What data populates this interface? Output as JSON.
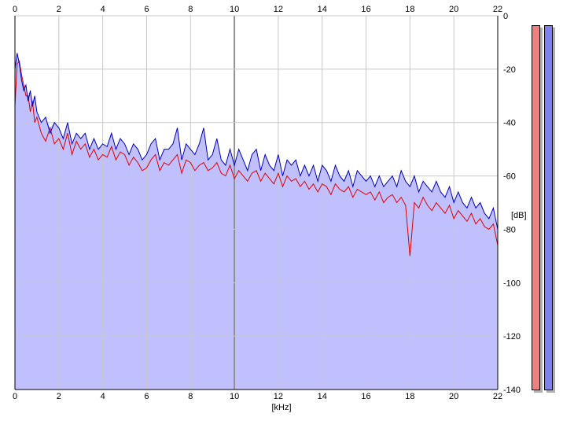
{
  "chart_data": {
    "type": "area",
    "title": "",
    "xlabel": "[kHz]",
    "ylabel": "[dB]",
    "xlim": [
      0,
      22
    ],
    "ylim": [
      -140,
      0
    ],
    "x_ticks": [
      "0",
      "2",
      "4",
      "6",
      "8",
      "10",
      "12",
      "14",
      "16",
      "18",
      "20",
      "22"
    ],
    "y_ticks": [
      "0",
      "-20",
      "-40",
      "-60",
      "-80",
      "-100",
      "-120",
      "-140"
    ],
    "grid": true,
    "colors": {
      "left": "#e00000",
      "right": "#0000c0",
      "fill": "#c0c0ff",
      "grid": "#c8c8c8"
    },
    "series": [
      {
        "channel": "left",
        "x": [
          0,
          0.1,
          0.2,
          0.3,
          0.4,
          0.5,
          0.6,
          0.7,
          0.8,
          0.9,
          1,
          1.2,
          1.4,
          1.6,
          1.8,
          2,
          2.2,
          2.4,
          2.6,
          2.8,
          3,
          3.2,
          3.4,
          3.6,
          3.8,
          4,
          4.2,
          4.4,
          4.6,
          4.8,
          5,
          5.2,
          5.4,
          5.6,
          5.8,
          6,
          6.2,
          6.4,
          6.6,
          6.8,
          7,
          7.2,
          7.4,
          7.6,
          7.8,
          8,
          8.2,
          8.4,
          8.6,
          8.8,
          9,
          9.2,
          9.4,
          9.6,
          9.8,
          10,
          10.2,
          10.4,
          10.6,
          10.8,
          11,
          11.2,
          11.4,
          11.6,
          11.8,
          12,
          12.2,
          12.4,
          12.6,
          12.8,
          13,
          13.2,
          13.4,
          13.6,
          13.8,
          14,
          14.2,
          14.4,
          14.6,
          14.8,
          15,
          15.2,
          15.4,
          15.6,
          15.8,
          16,
          16.2,
          16.4,
          16.6,
          16.8,
          17,
          17.2,
          17.4,
          17.6,
          17.8,
          18,
          18.2,
          18.4,
          18.6,
          18.8,
          19,
          19.2,
          19.4,
          19.6,
          19.8,
          20,
          20.2,
          20.4,
          20.6,
          20.8,
          21,
          21.2,
          21.4,
          21.6,
          21.8,
          22
        ],
        "y": [
          -34,
          -18,
          -17,
          -22,
          -26,
          -30,
          -30,
          -36,
          -32,
          -40,
          -38,
          -44,
          -47,
          -42,
          -48,
          -46,
          -50,
          -44,
          -52,
          -47,
          -50,
          -48,
          -53,
          -50,
          -54,
          -52,
          -53,
          -49,
          -54,
          -51,
          -52,
          -56,
          -53,
          -55,
          -58,
          -57,
          -54,
          -52,
          -58,
          -55,
          -56,
          -54,
          -52,
          -59,
          -54,
          -55,
          -58,
          -56,
          -55,
          -58,
          -57,
          -55,
          -59,
          -60,
          -56,
          -61,
          -58,
          -60,
          -62,
          -59,
          -58,
          -62,
          -59,
          -61,
          -63,
          -59,
          -64,
          -60,
          -62,
          -61,
          -64,
          -62,
          -65,
          -63,
          -66,
          -63,
          -64,
          -67,
          -63,
          -65,
          -66,
          -64,
          -68,
          -65,
          -66,
          -67,
          -66,
          -69,
          -66,
          -70,
          -68,
          -67,
          -70,
          -68,
          -71,
          -90,
          -70,
          -72,
          -68,
          -71,
          -73,
          -70,
          -72,
          -74,
          -71,
          -76,
          -73,
          -75,
          -77,
          -74,
          -78,
          -76,
          -79,
          -80,
          -78,
          -86
        ]
      },
      {
        "channel": "right",
        "x": [
          0,
          0.1,
          0.2,
          0.3,
          0.4,
          0.5,
          0.6,
          0.7,
          0.8,
          0.9,
          1,
          1.2,
          1.4,
          1.6,
          1.8,
          2,
          2.2,
          2.4,
          2.6,
          2.8,
          3,
          3.2,
          3.4,
          3.6,
          3.8,
          4,
          4.2,
          4.4,
          4.6,
          4.8,
          5,
          5.2,
          5.4,
          5.6,
          5.8,
          6,
          6.2,
          6.4,
          6.6,
          6.8,
          7,
          7.2,
          7.4,
          7.6,
          7.8,
          8,
          8.2,
          8.4,
          8.6,
          8.8,
          9,
          9.2,
          9.4,
          9.6,
          9.8,
          10,
          10.2,
          10.4,
          10.6,
          10.8,
          11,
          11.2,
          11.4,
          11.6,
          11.8,
          12,
          12.2,
          12.4,
          12.6,
          12.8,
          13,
          13.2,
          13.4,
          13.6,
          13.8,
          14,
          14.2,
          14.4,
          14.6,
          14.8,
          15,
          15.2,
          15.4,
          15.6,
          15.8,
          16,
          16.2,
          16.4,
          16.6,
          16.8,
          17,
          17.2,
          17.4,
          17.6,
          17.8,
          18,
          18.2,
          18.4,
          18.6,
          18.8,
          19,
          19.2,
          19.4,
          19.6,
          19.8,
          20,
          20.2,
          20.4,
          20.6,
          20.8,
          21,
          21.2,
          21.4,
          21.6,
          21.8,
          22
        ],
        "y": [
          -20,
          -14,
          -18,
          -24,
          -28,
          -26,
          -32,
          -28,
          -34,
          -30,
          -36,
          -40,
          -38,
          -44,
          -40,
          -42,
          -46,
          -40,
          -48,
          -44,
          -46,
          -44,
          -50,
          -46,
          -50,
          -48,
          -49,
          -44,
          -50,
          -46,
          -48,
          -52,
          -48,
          -50,
          -54,
          -52,
          -48,
          -46,
          -54,
          -50,
          -50,
          -48,
          -42,
          -54,
          -48,
          -50,
          -52,
          -48,
          -42,
          -54,
          -52,
          -46,
          -54,
          -56,
          -50,
          -56,
          -50,
          -54,
          -58,
          -52,
          -50,
          -58,
          -52,
          -56,
          -58,
          -52,
          -60,
          -54,
          -56,
          -54,
          -60,
          -56,
          -60,
          -56,
          -62,
          -56,
          -58,
          -62,
          -56,
          -60,
          -62,
          -58,
          -64,
          -58,
          -60,
          -62,
          -60,
          -64,
          -60,
          -64,
          -62,
          -60,
          -64,
          -58,
          -62,
          -64,
          -60,
          -66,
          -62,
          -64,
          -66,
          -62,
          -66,
          -68,
          -64,
          -70,
          -66,
          -70,
          -72,
          -68,
          -72,
          -70,
          -74,
          -76,
          -72,
          -80
        ]
      }
    ]
  },
  "meters": [
    {
      "channel": "left",
      "color": "#f08080",
      "level": 0.99
    },
    {
      "channel": "right",
      "color": "#8080f0",
      "level": 0.99
    }
  ]
}
